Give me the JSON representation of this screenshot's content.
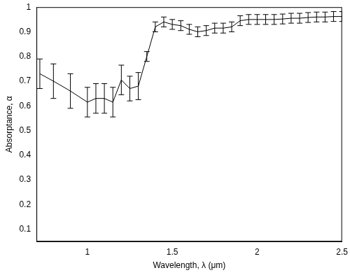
{
  "chart_data": {
    "type": "line",
    "x_label": "Wavelength, λ (μm)",
    "y_label": "Absorptance, α",
    "x": [
      0.72,
      0.8,
      0.9,
      1.0,
      1.05,
      1.1,
      1.15,
      1.2,
      1.25,
      1.3,
      1.35,
      1.4,
      1.45,
      1.5,
      1.55,
      1.6,
      1.65,
      1.7,
      1.75,
      1.8,
      1.85,
      1.9,
      1.95,
      2.0,
      2.05,
      2.1,
      2.15,
      2.2,
      2.25,
      2.3,
      2.35,
      2.4,
      2.45,
      2.5
    ],
    "values": [
      0.73,
      0.7,
      0.66,
      0.615,
      0.63,
      0.63,
      0.615,
      0.705,
      0.67,
      0.68,
      0.8,
      0.92,
      0.94,
      0.93,
      0.925,
      0.91,
      0.9,
      0.905,
      0.915,
      0.915,
      0.92,
      0.945,
      0.95,
      0.95,
      0.95,
      0.95,
      0.952,
      0.955,
      0.955,
      0.958,
      0.96,
      0.96,
      0.962,
      0.962
    ],
    "errors": [
      0.06,
      0.07,
      0.07,
      0.06,
      0.06,
      0.06,
      0.06,
      0.06,
      0.05,
      0.055,
      0.02,
      0.02,
      0.02,
      0.02,
      0.02,
      0.02,
      0.02,
      0.02,
      0.02,
      0.02,
      0.02,
      0.02,
      0.02,
      0.02,
      0.02,
      0.02,
      0.02,
      0.02,
      0.02,
      0.02,
      0.02,
      0.02,
      0.02,
      0.02
    ],
    "color": "#000000",
    "marker": "none",
    "grid": false,
    "xlim": [
      0.7,
      2.5
    ],
    "xticks": [
      1,
      1.5,
      2,
      2.5
    ],
    "ylim": [
      0.05,
      1
    ],
    "yticks": [
      0.1,
      0.2,
      0.3,
      0.4,
      0.5,
      0.6,
      0.7,
      0.8,
      0.9,
      1
    ]
  }
}
